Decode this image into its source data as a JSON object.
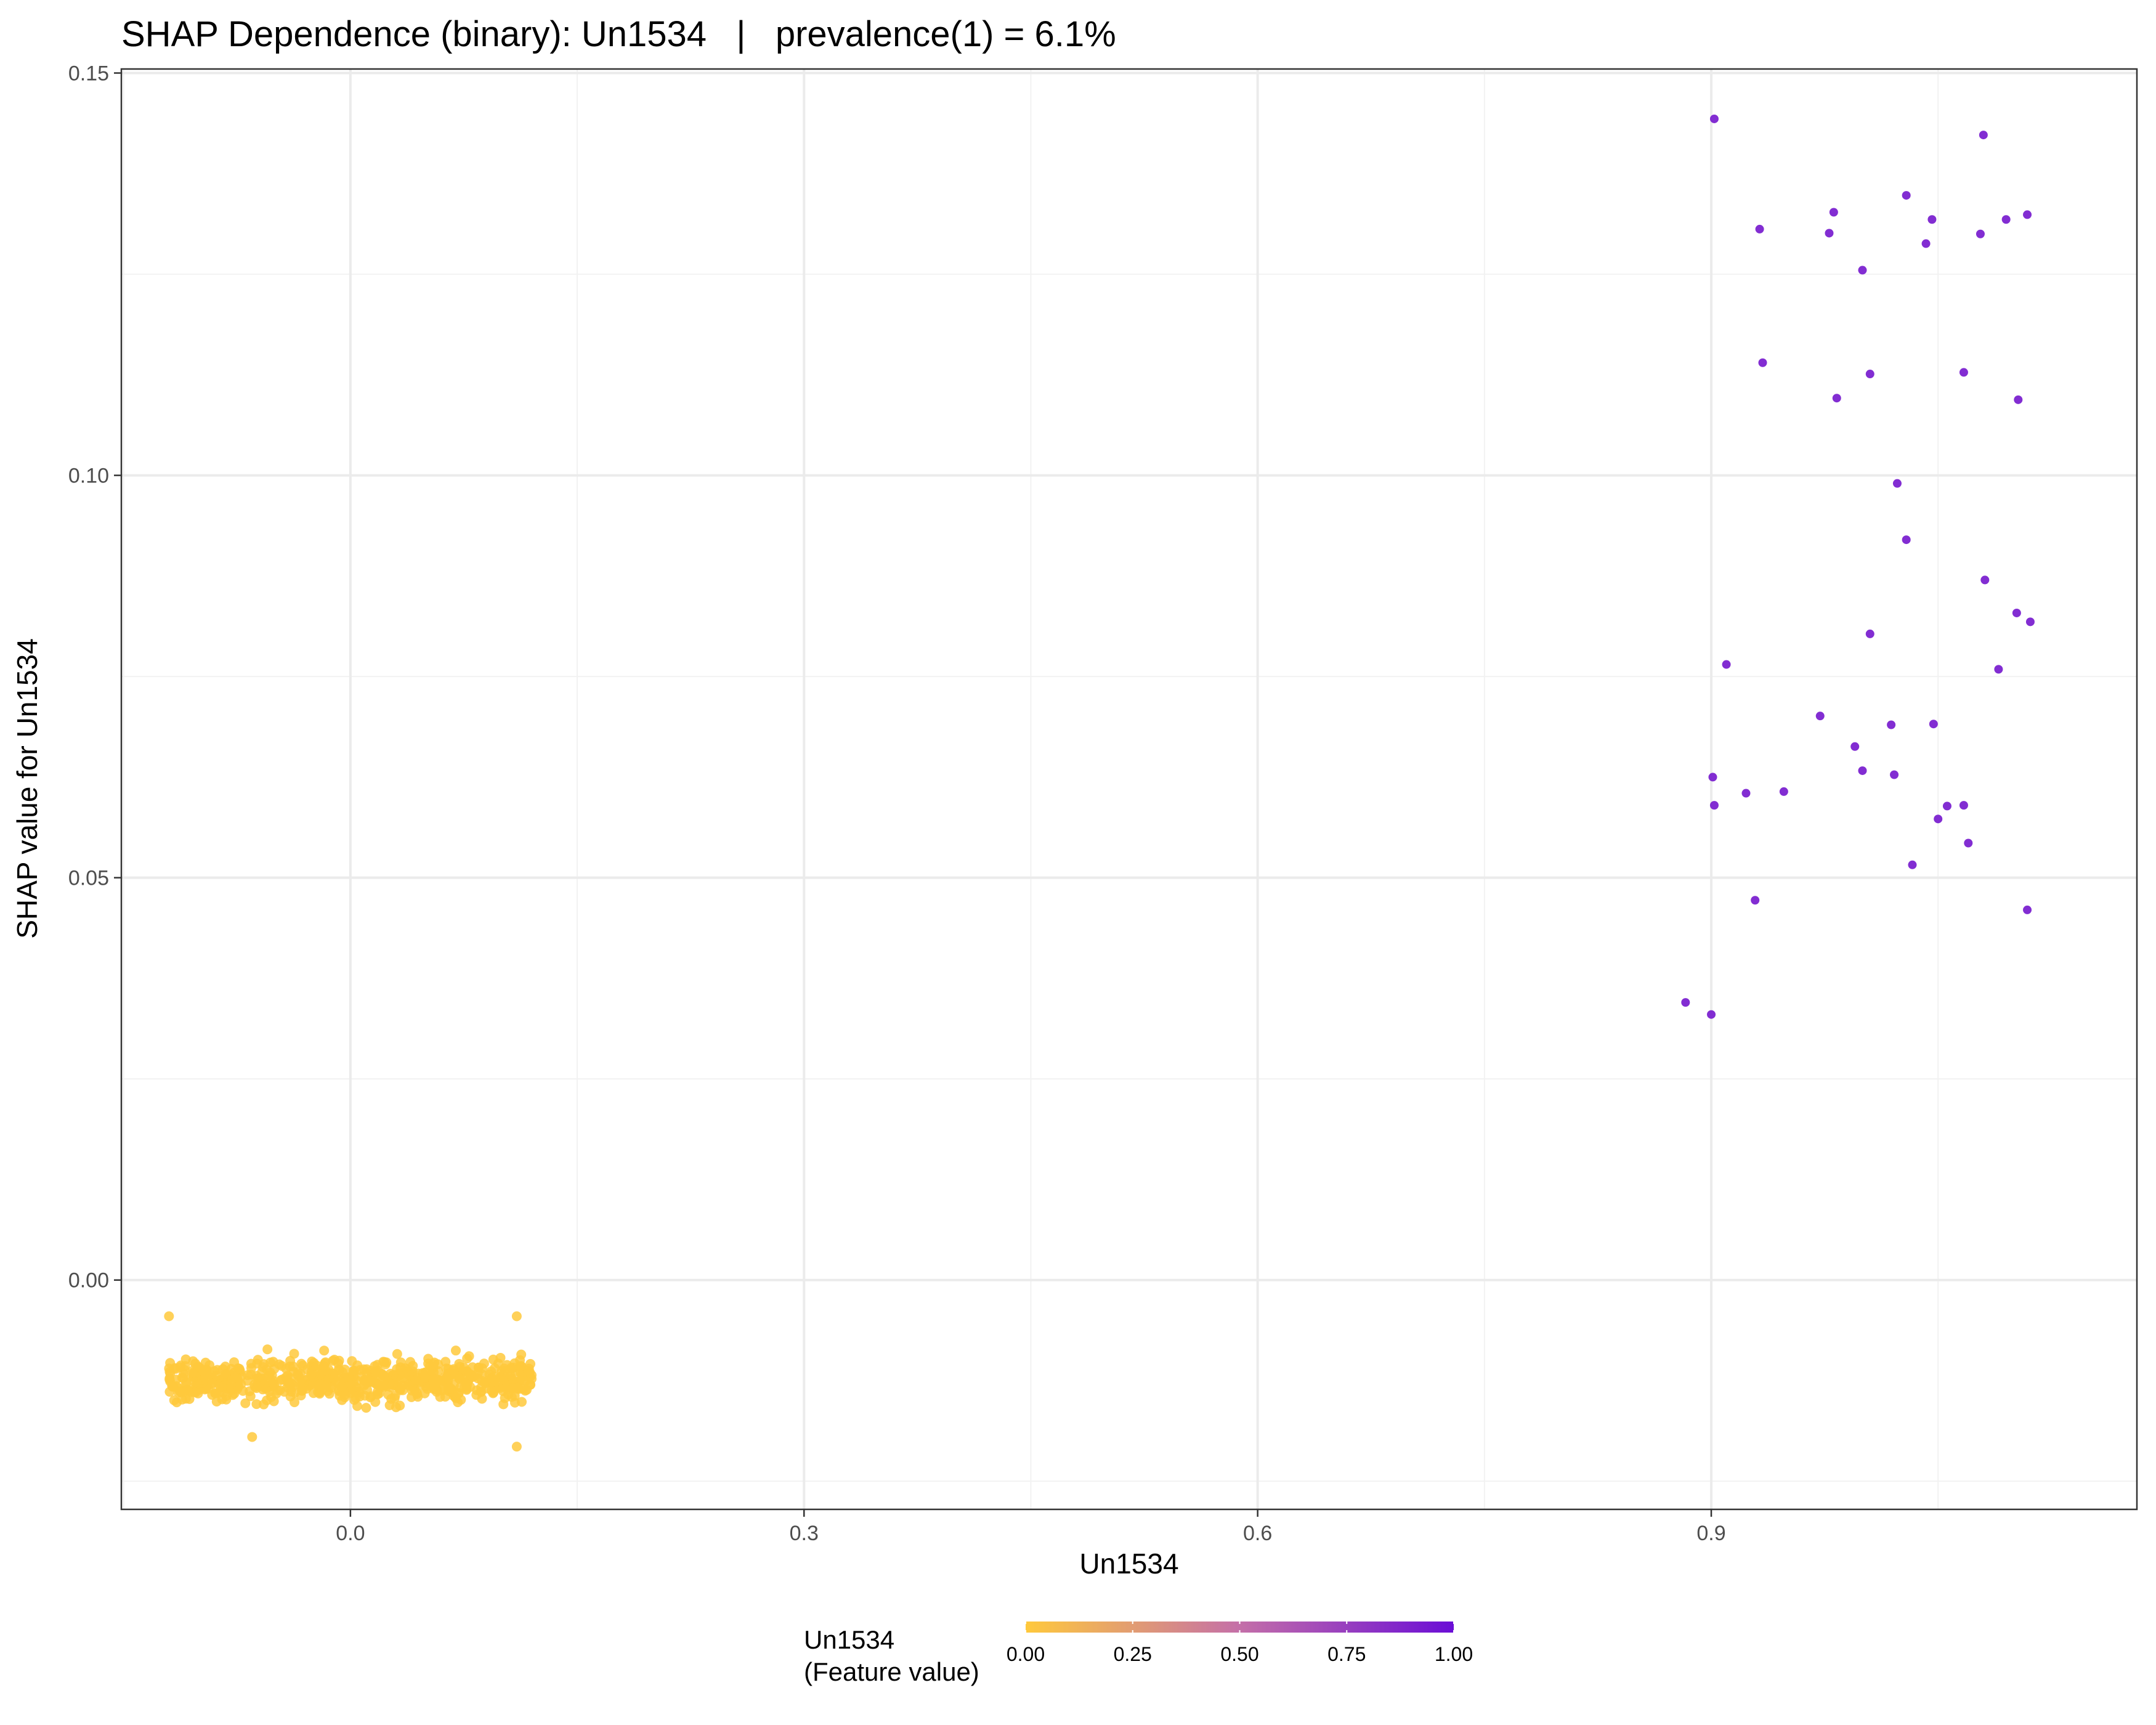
{
  "chart_data": {
    "type": "scatter",
    "title": "SHAP Dependence (binary): Un1534   |   prevalence(1) = 6.1%",
    "xlabel": "Un1534",
    "ylabel": "SHAP value for Un1534",
    "xlim": [
      -0.1515,
      1.1815
    ],
    "ylim": [
      -0.0285,
      0.1505
    ],
    "x_ticks": [
      0.0,
      0.3,
      0.6,
      0.9
    ],
    "x_tick_labels": [
      "0.0",
      "0.3",
      "0.6",
      "0.9"
    ],
    "y_ticks": [
      0.0,
      0.05,
      0.1,
      0.15
    ],
    "y_tick_labels": [
      "0.00",
      "0.05",
      "0.10",
      "0.15"
    ],
    "grid": true,
    "color_scale": {
      "title_line1": "Un1534",
      "title_line2": "(Feature value)",
      "low_color": "#FFC93C",
      "high_color": "#6A0DD6",
      "min": 0.0,
      "max": 1.0,
      "breaks": [
        0.0,
        0.25,
        0.5,
        0.75,
        1.0
      ],
      "break_labels": [
        "0.00",
        "0.25",
        "0.50",
        "0.75",
        "1.00"
      ],
      "position": "bottom"
    },
    "series": [
      {
        "feature_value": 0,
        "x_jitter_range": [
          -0.12,
          0.12
        ],
        "shap_range": [
          -0.0205,
          -0.0045
        ],
        "shap_center": -0.0125,
        "approx_points": 700,
        "color": "#FFC93C",
        "points": [
          [
            0.11,
            -0.0207
          ],
          [
            -0.065,
            -0.0195
          ],
          [
            -0.12,
            -0.0045
          ],
          [
            0.11,
            -0.0045
          ]
        ]
      },
      {
        "feature_value": 1,
        "color": "#7B22D0",
        "points": [
          [
            0.902,
            0.1443
          ],
          [
            1.08,
            0.1423
          ],
          [
            1.029,
            0.1348
          ],
          [
            0.981,
            0.1327
          ],
          [
            1.046,
            0.1318
          ],
          [
            1.109,
            0.1324
          ],
          [
            1.095,
            0.1318
          ],
          [
            0.932,
            0.1306
          ],
          [
            0.978,
            0.1301
          ],
          [
            1.078,
            0.13
          ],
          [
            1.042,
            0.1288
          ],
          [
            1.0,
            0.1255
          ],
          [
            0.934,
            0.114
          ],
          [
            1.005,
            0.1126
          ],
          [
            1.067,
            0.1128
          ],
          [
            0.983,
            0.1096
          ],
          [
            1.103,
            0.1094
          ],
          [
            1.023,
            0.099
          ],
          [
            1.029,
            0.092
          ],
          [
            1.081,
            0.087
          ],
          [
            1.102,
            0.0829
          ],
          [
            1.111,
            0.0818
          ],
          [
            1.005,
            0.0803
          ],
          [
            0.91,
            0.0765
          ],
          [
            1.09,
            0.0759
          ],
          [
            0.972,
            0.0701
          ],
          [
            1.019,
            0.069
          ],
          [
            1.047,
            0.0691
          ],
          [
            0.995,
            0.0663
          ],
          [
            1.0,
            0.0633
          ],
          [
            1.021,
            0.0628
          ],
          [
            0.901,
            0.0625
          ],
          [
            0.923,
            0.0605
          ],
          [
            0.948,
            0.0607
          ],
          [
            0.902,
            0.059
          ],
          [
            1.056,
            0.0589
          ],
          [
            1.067,
            0.059
          ],
          [
            1.05,
            0.0573
          ],
          [
            1.07,
            0.0543
          ],
          [
            1.033,
            0.0516
          ],
          [
            0.929,
            0.0472
          ],
          [
            1.109,
            0.046
          ],
          [
            0.883,
            0.0345
          ],
          [
            0.9,
            0.033
          ]
        ]
      }
    ]
  }
}
